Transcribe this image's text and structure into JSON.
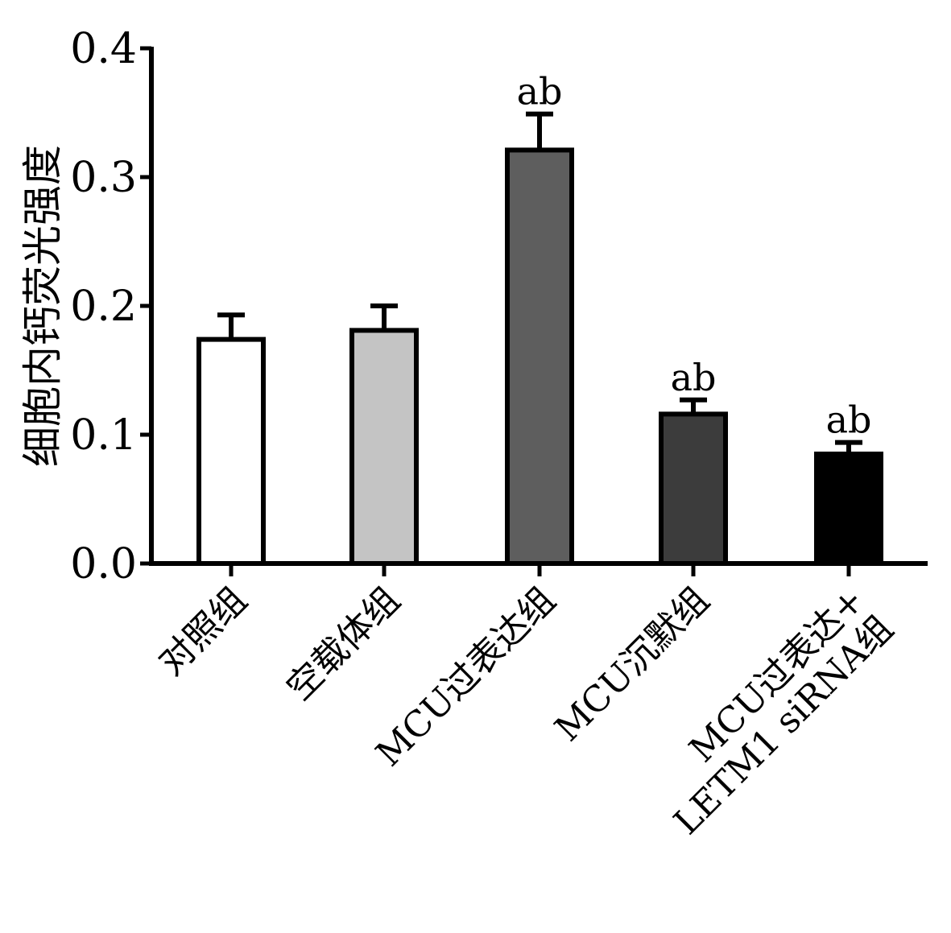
{
  "chart_data": {
    "type": "bar",
    "ylabel": "细胞内钙荧光强度",
    "xlabel": "",
    "ylim": [
      0,
      0.4
    ],
    "yticks": [
      "0.0",
      "0.1",
      "0.2",
      "0.3",
      "0.4"
    ],
    "ytick_values": [
      0,
      0.1,
      0.2,
      0.3,
      0.4
    ],
    "categories": [
      [
        "对照组"
      ],
      [
        "空载体组"
      ],
      [
        "MCU过表达组"
      ],
      [
        "MCU沉默组"
      ],
      [
        "MCU过表达+",
        "LETM1 siRNA组"
      ]
    ],
    "values": [
      0.174,
      0.181,
      0.321,
      0.116,
      0.085
    ],
    "errors": [
      0.019,
      0.019,
      0.028,
      0.011,
      0.009
    ],
    "annotations": [
      "",
      "",
      "ab",
      "ab",
      "ab"
    ],
    "colors": [
      "#ffffff",
      "#c4c4c4",
      "#5e5e5e",
      "#3c3c3c",
      "#000000"
    ],
    "grid": false
  }
}
